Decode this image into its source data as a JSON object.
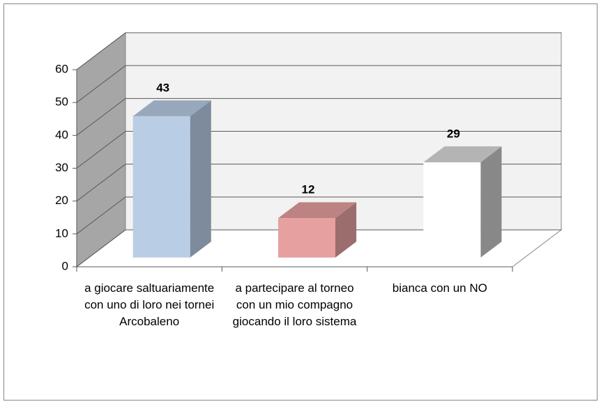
{
  "chart_data": {
    "type": "bar3d",
    "categories": [
      "a giocare saltuariamente con uno di loro nei tornei Arcobaleno",
      "a partecipare al torneo con un mio compagno giocando il loro sistema",
      "bianca con un NO"
    ],
    "values": [
      43,
      12,
      29
    ],
    "colors": [
      "#b9cde5",
      "#e6a0a0",
      "#ffffff"
    ],
    "ylim": [
      0,
      60
    ],
    "yticks": [
      0,
      10,
      20,
      30,
      40,
      50,
      60
    ],
    "grid": true
  }
}
